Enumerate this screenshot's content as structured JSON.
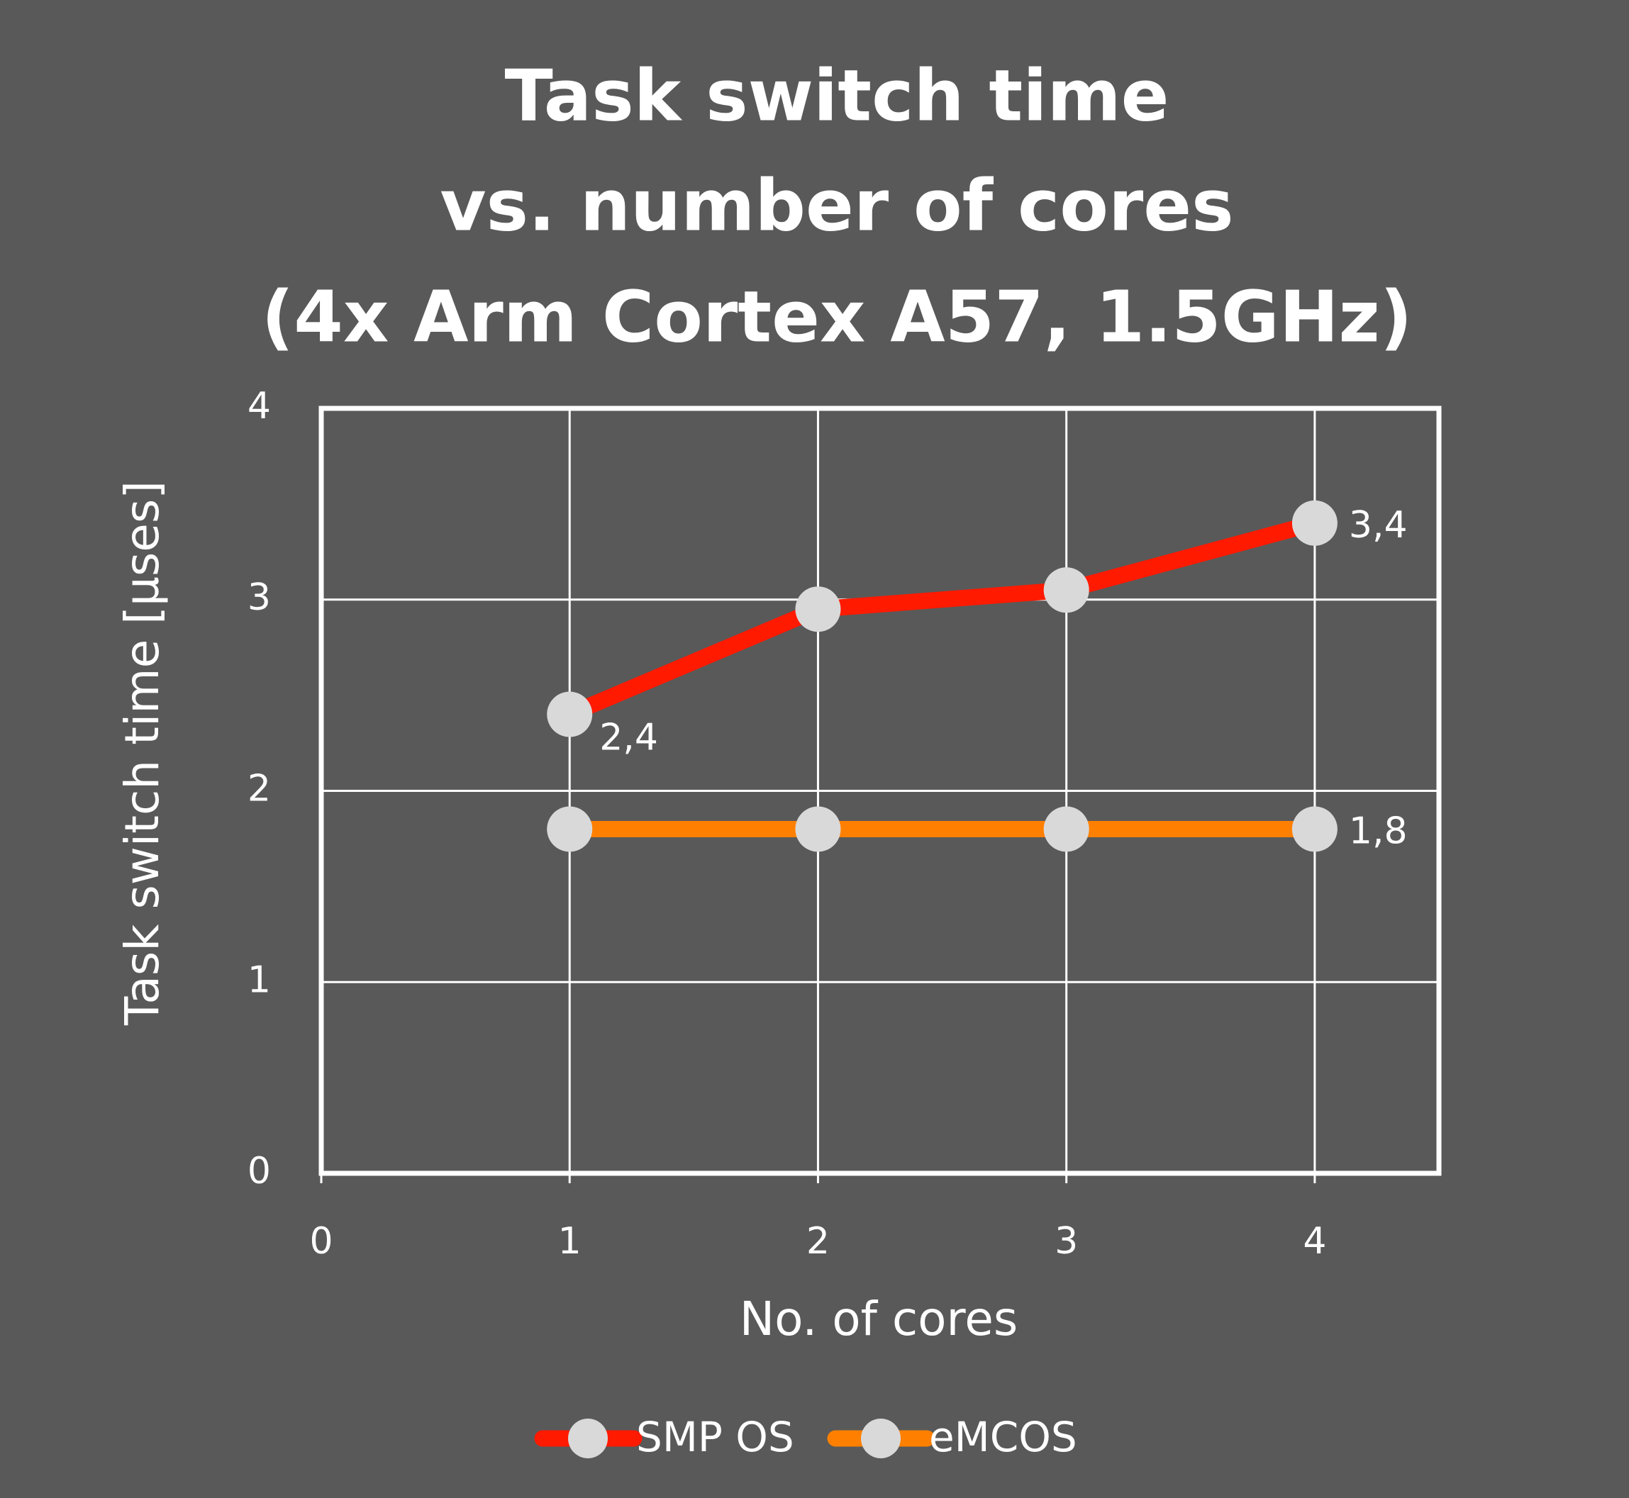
{
  "chart_data": {
    "type": "line",
    "title": [
      "Task switch time",
      "vs. number of cores",
      "(4x Arm Cortex A57, 1.5GHz)"
    ],
    "x_label": "No. of cores",
    "y_label": "Task switch time [µses]",
    "x": [
      1,
      2,
      3,
      4
    ],
    "series": [
      {
        "name": "SMP OS",
        "color": "#ff1a00",
        "values": [
          2.4,
          2.95,
          3.05,
          3.4
        ],
        "value_labels": [
          "2,4",
          null,
          null,
          "3,4"
        ]
      },
      {
        "name": "eMCOS",
        "color": "#ff8000",
        "values": [
          1.8,
          1.8,
          1.8,
          1.8
        ],
        "value_labels": [
          null,
          null,
          null,
          "1,8"
        ]
      }
    ],
    "xlim": [
      0,
      4.5
    ],
    "xticks": [
      0,
      1,
      2,
      3,
      4
    ],
    "ylim": [
      0,
      4
    ],
    "yticks": [
      0,
      1,
      2,
      3,
      4
    ],
    "grid": true,
    "legend": "bottom"
  }
}
